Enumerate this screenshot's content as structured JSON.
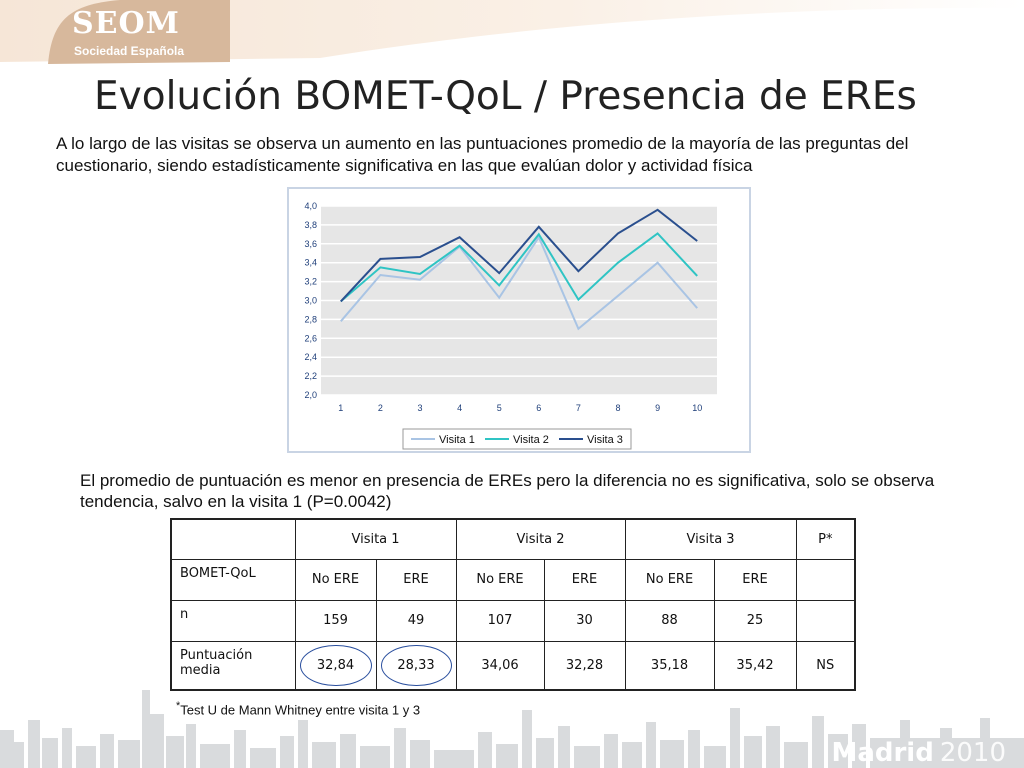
{
  "logo": {
    "name": "SEOM",
    "subtitle": "Sociedad Española"
  },
  "slide": {
    "title": "Evolución BOMET-QoL / Presencia de EREs",
    "intro": "A lo largo de las visitas se observa un aumento en las puntuaciones promedio de la mayoría de las preguntas del cuestionario, siendo estadísticamente significativa en las que evalúan dolor y actividad física",
    "note": "El promedio de puntuación es menor en presencia de EREs pero la diferencia no es significativa, solo se observa tendencia, salvo en la visita 1 (P=0.0042)",
    "footnote_mark": "*",
    "footnote": "Test U de Mann Whitney entre visita 1 y 3"
  },
  "chart_data": {
    "type": "line",
    "title": "",
    "xlabel": "",
    "ylabel": "",
    "x": [
      1,
      2,
      3,
      4,
      5,
      6,
      7,
      8,
      9,
      10
    ],
    "x_tick_labels": [
      "1",
      "2",
      "3",
      "4",
      "5",
      "6",
      "7",
      "8",
      "9",
      "10"
    ],
    "ylim": [
      2.0,
      4.0
    ],
    "y_ticks": [
      2.0,
      2.2,
      2.4,
      2.6,
      2.8,
      3.0,
      3.2,
      3.4,
      3.6,
      3.8,
      4.0
    ],
    "y_tick_labels": [
      "2,0",
      "2,2",
      "2,4",
      "2,6",
      "2,8",
      "3,0",
      "3,2",
      "3,4",
      "3,6",
      "3,8",
      "4,0"
    ],
    "grid": true,
    "legend_position": "bottom",
    "series": [
      {
        "name": "Visita 1",
        "color": "#a9c4e4",
        "values": [
          2.78,
          3.27,
          3.22,
          3.57,
          3.03,
          3.67,
          2.7,
          3.05,
          3.4,
          2.92
        ]
      },
      {
        "name": "Visita 2",
        "color": "#2fc4c4",
        "values": [
          2.99,
          3.35,
          3.28,
          3.58,
          3.16,
          3.7,
          3.01,
          3.4,
          3.71,
          3.26
        ]
      },
      {
        "name": "Visita 3",
        "color": "#2a4f8e",
        "values": [
          2.99,
          3.44,
          3.46,
          3.67,
          3.29,
          3.78,
          3.31,
          3.71,
          3.96,
          3.63
        ]
      }
    ]
  },
  "table": {
    "visit_headers": [
      "Visita 1",
      "Visita 2",
      "Visita 3"
    ],
    "p_header": "P*",
    "rows": [
      {
        "label": "BOMET-QoL",
        "cells": [
          "No ERE",
          "ERE",
          "No ERE",
          "ERE",
          "No ERE",
          "ERE"
        ],
        "p": ""
      },
      {
        "label": "n",
        "cells": [
          "159",
          "49",
          "107",
          "30",
          "88",
          "25"
        ],
        "p": ""
      },
      {
        "label": "Puntuación media",
        "cells": [
          "32,84",
          "28,33",
          "34,06",
          "32,28",
          "35,18",
          "35,42"
        ],
        "p": "NS"
      }
    ]
  },
  "footer": {
    "city": "Madrid",
    "year": "2010"
  },
  "colors": {
    "header_band": "#f3e0cf",
    "skyline": "#d6d8da",
    "oval": "#2a4f9e"
  }
}
